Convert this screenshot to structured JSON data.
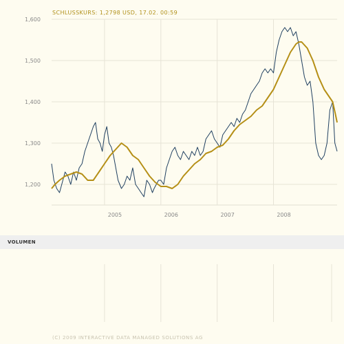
{
  "header": {
    "text": "SCHLUSSKURS: 1,2798 USD, 17.02. 00:59"
  },
  "chart_data": {
    "type": "line",
    "title": "",
    "xlabel": "",
    "ylabel": "",
    "ylim": [
      1.15,
      1.6
    ],
    "xlim": [
      2004.06,
      2009.13
    ],
    "grid": true,
    "yticks": [
      {
        "value": 1.2,
        "label": "1,200"
      },
      {
        "value": 1.3,
        "label": "1,300"
      },
      {
        "value": 1.4,
        "label": "1,400"
      },
      {
        "value": 1.5,
        "label": "1,500"
      },
      {
        "value": 1.6,
        "label": "1,600"
      }
    ],
    "xticks": [
      {
        "value": 2005.0,
        "label": "2005"
      },
      {
        "value": 2006.0,
        "label": "2006"
      },
      {
        "value": 2007.0,
        "label": "2007"
      },
      {
        "value": 2008.0,
        "label": "2008"
      }
    ],
    "series": [
      {
        "color": "#1f3f60",
        "x": [
          2004.06,
          2004.1,
          2004.15,
          2004.2,
          2004.26,
          2004.3,
          2004.35,
          2004.4,
          2004.45,
          2004.5,
          2004.55,
          2004.6,
          2004.65,
          2004.7,
          2004.75,
          2004.8,
          2004.84,
          2004.88,
          2004.92,
          2004.96,
          2005.0,
          2005.04,
          2005.08,
          2005.12,
          2005.16,
          2005.2,
          2005.24,
          2005.3,
          2005.35,
          2005.4,
          2005.45,
          2005.5,
          2005.55,
          2005.6,
          2005.65,
          2005.7,
          2005.75,
          2005.8,
          2005.85,
          2005.88,
          2005.92,
          2005.96,
          2006.0,
          2006.05,
          2006.1,
          2006.15,
          2006.2,
          2006.25,
          2006.3,
          2006.35,
          2006.4,
          2006.45,
          2006.5,
          2006.55,
          2006.6,
          2006.65,
          2006.7,
          2006.75,
          2006.8,
          2006.85,
          2006.9,
          2006.95,
          2007.0,
          2007.05,
          2007.1,
          2007.15,
          2007.2,
          2007.25,
          2007.3,
          2007.35,
          2007.4,
          2007.45,
          2007.5,
          2007.55,
          2007.6,
          2007.65,
          2007.7,
          2007.75,
          2007.8,
          2007.85,
          2007.9,
          2007.95,
          2008.0,
          2008.05,
          2008.1,
          2008.15,
          2008.2,
          2008.25,
          2008.3,
          2008.35,
          2008.4,
          2008.45,
          2008.5,
          2008.55,
          2008.6,
          2008.65,
          2008.7,
          2008.75,
          2008.8,
          2008.85,
          2008.9,
          2008.95,
          2009.0,
          2009.05,
          2009.09,
          2009.13
        ],
        "y": [
          1.25,
          1.21,
          1.19,
          1.18,
          1.21,
          1.23,
          1.22,
          1.2,
          1.23,
          1.21,
          1.24,
          1.25,
          1.28,
          1.3,
          1.32,
          1.34,
          1.35,
          1.31,
          1.3,
          1.28,
          1.32,
          1.34,
          1.3,
          1.29,
          1.27,
          1.24,
          1.21,
          1.19,
          1.2,
          1.22,
          1.21,
          1.24,
          1.2,
          1.19,
          1.18,
          1.17,
          1.21,
          1.2,
          1.18,
          1.19,
          1.2,
          1.21,
          1.21,
          1.2,
          1.24,
          1.26,
          1.28,
          1.29,
          1.27,
          1.26,
          1.28,
          1.27,
          1.26,
          1.28,
          1.27,
          1.29,
          1.27,
          1.28,
          1.31,
          1.32,
          1.33,
          1.31,
          1.3,
          1.29,
          1.32,
          1.33,
          1.34,
          1.35,
          1.34,
          1.36,
          1.35,
          1.37,
          1.38,
          1.4,
          1.42,
          1.43,
          1.44,
          1.45,
          1.47,
          1.48,
          1.47,
          1.48,
          1.47,
          1.52,
          1.55,
          1.57,
          1.58,
          1.57,
          1.58,
          1.56,
          1.57,
          1.54,
          1.5,
          1.46,
          1.44,
          1.45,
          1.4,
          1.3,
          1.27,
          1.26,
          1.27,
          1.3,
          1.38,
          1.4,
          1.3,
          1.28
        ]
      },
      {
        "color": "#b58f16",
        "x": [
          2004.06,
          2004.12,
          2004.2,
          2004.3,
          2004.4,
          2004.5,
          2004.6,
          2004.7,
          2004.8,
          2004.9,
          2005.0,
          2005.1,
          2005.2,
          2005.3,
          2005.4,
          2005.5,
          2005.6,
          2005.7,
          2005.8,
          2005.9,
          2006.0,
          2006.1,
          2006.2,
          2006.3,
          2006.4,
          2006.5,
          2006.6,
          2006.7,
          2006.8,
          2006.9,
          2007.0,
          2007.1,
          2007.2,
          2007.3,
          2007.4,
          2007.5,
          2007.6,
          2007.7,
          2007.8,
          2007.9,
          2008.0,
          2008.1,
          2008.2,
          2008.3,
          2008.4,
          2008.45,
          2008.5,
          2008.6,
          2008.7,
          2008.8,
          2008.9,
          2009.0,
          2009.05,
          2009.1,
          2009.13
        ],
        "y": [
          1.19,
          1.2,
          1.21,
          1.22,
          1.225,
          1.23,
          1.225,
          1.21,
          1.21,
          1.23,
          1.25,
          1.27,
          1.285,
          1.3,
          1.29,
          1.27,
          1.26,
          1.24,
          1.22,
          1.205,
          1.195,
          1.195,
          1.19,
          1.2,
          1.22,
          1.235,
          1.25,
          1.26,
          1.275,
          1.28,
          1.29,
          1.295,
          1.31,
          1.33,
          1.345,
          1.355,
          1.365,
          1.38,
          1.39,
          1.41,
          1.43,
          1.46,
          1.49,
          1.52,
          1.54,
          1.545,
          1.545,
          1.53,
          1.5,
          1.46,
          1.43,
          1.41,
          1.4,
          1.37,
          1.35
        ]
      }
    ]
  },
  "volume": {
    "label": "VOLUMEN"
  },
  "footer": {
    "text": "(C) 2009 INTERACTIVE DATA MANAGED SOLUTIONS AG"
  }
}
